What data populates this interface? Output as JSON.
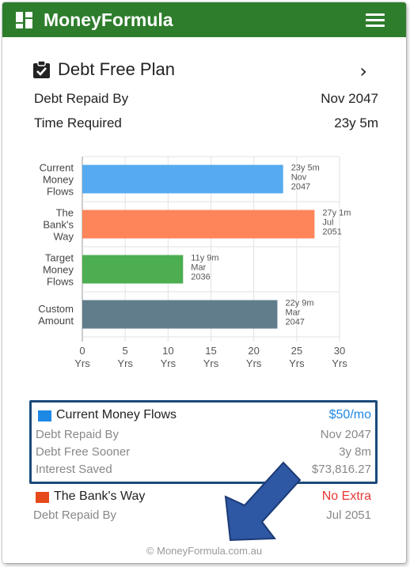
{
  "app": {
    "title": "MoneyFormula"
  },
  "plan": {
    "title": "Debt Free Plan",
    "rows": [
      {
        "label": "Debt Repaid By",
        "value": "Nov 2047"
      },
      {
        "label": "Time Required",
        "value": "23y 5m"
      }
    ]
  },
  "chart_data": {
    "type": "bar",
    "orientation": "horizontal",
    "categories": [
      "Current Money Flows",
      "The Bank's Way",
      "Target Money Flows",
      "Custom Amount"
    ],
    "category_lines": [
      [
        "Current",
        "Money",
        "Flows"
      ],
      [
        "The",
        "Bank's",
        "Way"
      ],
      [
        "Target",
        "Money",
        "Flows"
      ],
      [
        "Custom",
        "Amount"
      ]
    ],
    "values": [
      23.42,
      27.08,
      11.75,
      22.75
    ],
    "colors": [
      "#55aaf0",
      "#fe8559",
      "#4cae50",
      "#617d8b"
    ],
    "data_labels": [
      [
        "23y 5m",
        "Nov",
        "2047"
      ],
      [
        "27y 1m",
        "Jul",
        "2051"
      ],
      [
        "11y 9m",
        "Mar",
        "2036"
      ],
      [
        "22y 9m",
        "Mar",
        "2047"
      ]
    ],
    "xticks": [
      0,
      5,
      10,
      15,
      20,
      25,
      30
    ],
    "xtick_unit": "Yrs",
    "xlim": [
      0,
      30
    ],
    "grid": true
  },
  "summary": {
    "primary": {
      "name": "Current Money Flows",
      "color": "#1e88e5",
      "amount": "$50/mo",
      "amount_color": "#1e88e5",
      "rows": [
        {
          "label": "Debt Repaid By",
          "value": "Nov 2047"
        },
        {
          "label": "Debt Free Sooner",
          "value": "3y 8m"
        },
        {
          "label": "Interest Saved",
          "value": "$73,816.27"
        }
      ]
    },
    "secondary": {
      "name": "The Bank's Way",
      "color": "#e64a19",
      "amount": "No Extra",
      "amount_color": "#e53935",
      "rows": [
        {
          "label": "Debt Repaid By",
          "value": "Jul 2051"
        }
      ]
    }
  },
  "footer": {
    "text": "© MoneyFormula.com.au"
  },
  "icons": {
    "logo": "grid-logo-icon",
    "menu": "hamburger-menu-icon",
    "plan": "clipboard-check-icon",
    "next": "chevron-right-icon",
    "pointer": "pointer-arrow-icon"
  }
}
